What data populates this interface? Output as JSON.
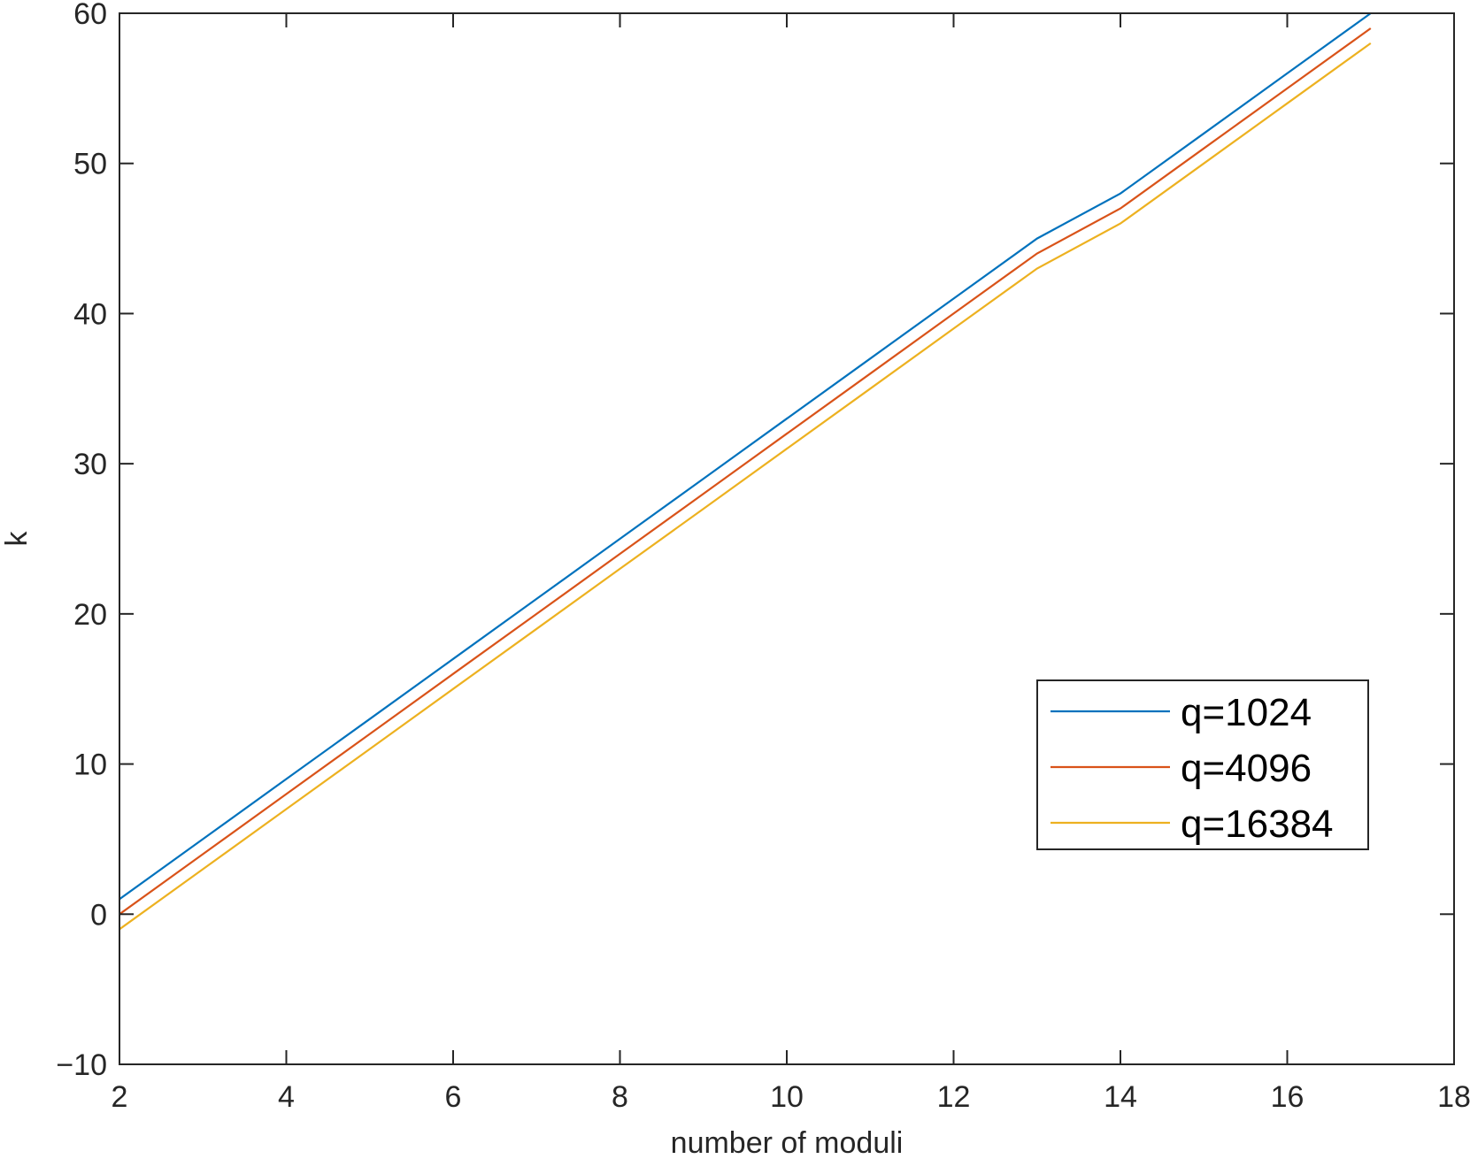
{
  "chart_data": {
    "type": "line",
    "xlabel": "number of moduli",
    "ylabel": "k",
    "xlim": [
      2,
      18
    ],
    "ylim": [
      -10,
      60
    ],
    "xticks": [
      2,
      4,
      6,
      8,
      10,
      12,
      14,
      16,
      18
    ],
    "yticks": [
      -10,
      0,
      10,
      20,
      30,
      40,
      50,
      60
    ],
    "ytick_labels": [
      "−10",
      "0",
      "10",
      "20",
      "30",
      "40",
      "50",
      "60"
    ],
    "grid": false,
    "box": true,
    "legend_position": "lower-right",
    "x": [
      2,
      3,
      4,
      5,
      6,
      7,
      8,
      9,
      10,
      11,
      12,
      13,
      14,
      15,
      16,
      17
    ],
    "series": [
      {
        "name": "q=1024",
        "color": "#0072BD",
        "values": [
          1,
          5,
          9,
          13,
          17,
          21,
          25,
          29,
          33,
          37,
          41,
          45,
          48,
          52,
          56,
          60
        ]
      },
      {
        "name": "q=4096",
        "color": "#D95319",
        "values": [
          0,
          4,
          8,
          12,
          16,
          20,
          24,
          28,
          32,
          36,
          40,
          44,
          47,
          51,
          55,
          59
        ]
      },
      {
        "name": "q=16384",
        "color": "#EDB120",
        "values": [
          -1,
          3,
          7,
          11,
          15,
          19,
          23,
          27,
          31,
          35,
          39,
          43,
          46,
          50,
          54,
          58
        ]
      }
    ]
  }
}
